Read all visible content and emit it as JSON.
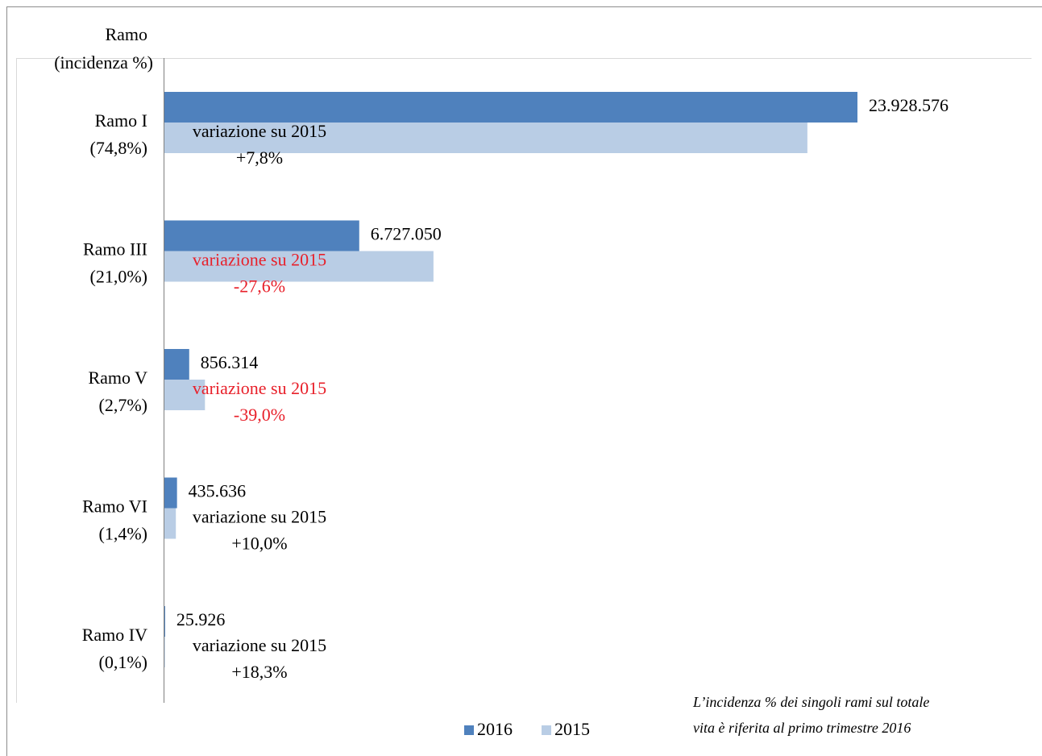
{
  "chart_data": {
    "type": "bar",
    "orientation": "horizontal",
    "ylabel": "Ramo",
    "ylabel_sub": "(incidenza %)",
    "categories": [
      "Ramo I",
      "Ramo III",
      "Ramo V",
      "Ramo VI",
      "Ramo IV"
    ],
    "category_sublabels": [
      "(74,8%)",
      "(21,0%)",
      "(2,7%)",
      "(1,4%)",
      "(0,1%)"
    ],
    "series": [
      {
        "name": "2016",
        "color": "#4f81bd",
        "values": [
          23928576,
          6727050,
          856314,
          435636,
          25926
        ],
        "value_labels": [
          "23.928.576",
          "6.727.050",
          "856.314",
          "435.636",
          "25.926"
        ]
      },
      {
        "name": "2015",
        "color": "#b9cde5",
        "values": [
          22200000,
          9290000,
          1400000,
          396000,
          21900
        ]
      }
    ],
    "annotations": [
      {
        "text": "variazione su 2015",
        "change": "+7,8%",
        "color": "#000000"
      },
      {
        "text": "variazione su 2015",
        "change": "-27,6%",
        "color": "#e8202a"
      },
      {
        "text": "variazione su 2015",
        "change": "-39,0%",
        "color": "#e8202a"
      },
      {
        "text": "variazione su 2015",
        "change": "+10,0%",
        "color": "#000000"
      },
      {
        "text": "variazione su 2015",
        "change": "+18,3%",
        "color": "#000000"
      }
    ],
    "footnote": [
      "L’incidenza % dei singoli rami sul totale",
      "vita è riferita al primo trimestre 2016"
    ],
    "legend": "bottom"
  }
}
